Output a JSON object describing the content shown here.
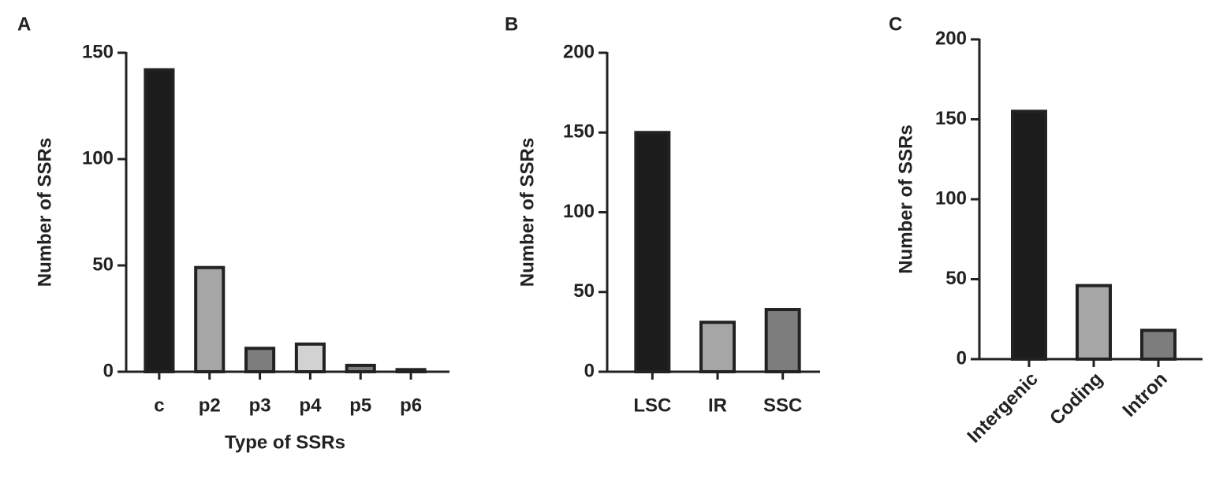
{
  "chart_data": [
    {
      "type": "bar",
      "panel": "A",
      "ylabel": "Number of SSRs",
      "xlabel": "Type of SSRs",
      "categories": [
        "c",
        "p2",
        "p3",
        "p4",
        "p5",
        "p6"
      ],
      "values": [
        142,
        49,
        11,
        13,
        3,
        1
      ],
      "colors": [
        "#1c1c1c",
        "#a6a6a6",
        "#7d7d7d",
        "#d2d2d2",
        "#7d7d7d",
        "#3a3a3a"
      ],
      "ylim": [
        0,
        150
      ],
      "yticks": [
        0,
        50,
        100,
        150
      ]
    },
    {
      "type": "bar",
      "panel": "B",
      "ylabel": "Number of SSRs",
      "categories": [
        "LSC",
        "IR",
        "SSC"
      ],
      "values": [
        150,
        31,
        39
      ],
      "colors": [
        "#1c1c1c",
        "#a6a6a6",
        "#7d7d7d"
      ],
      "ylim": [
        0,
        200
      ],
      "yticks": [
        0,
        50,
        100,
        150,
        200
      ]
    },
    {
      "type": "bar",
      "panel": "C",
      "ylabel": "Number of SSRs",
      "categories": [
        "Intergenic",
        "Coding",
        "Intron"
      ],
      "values": [
        155,
        46,
        18
      ],
      "colors": [
        "#1c1c1c",
        "#a6a6a6",
        "#7d7d7d"
      ],
      "ylim": [
        0,
        200
      ],
      "yticks": [
        0,
        50,
        100,
        150,
        200
      ]
    }
  ]
}
